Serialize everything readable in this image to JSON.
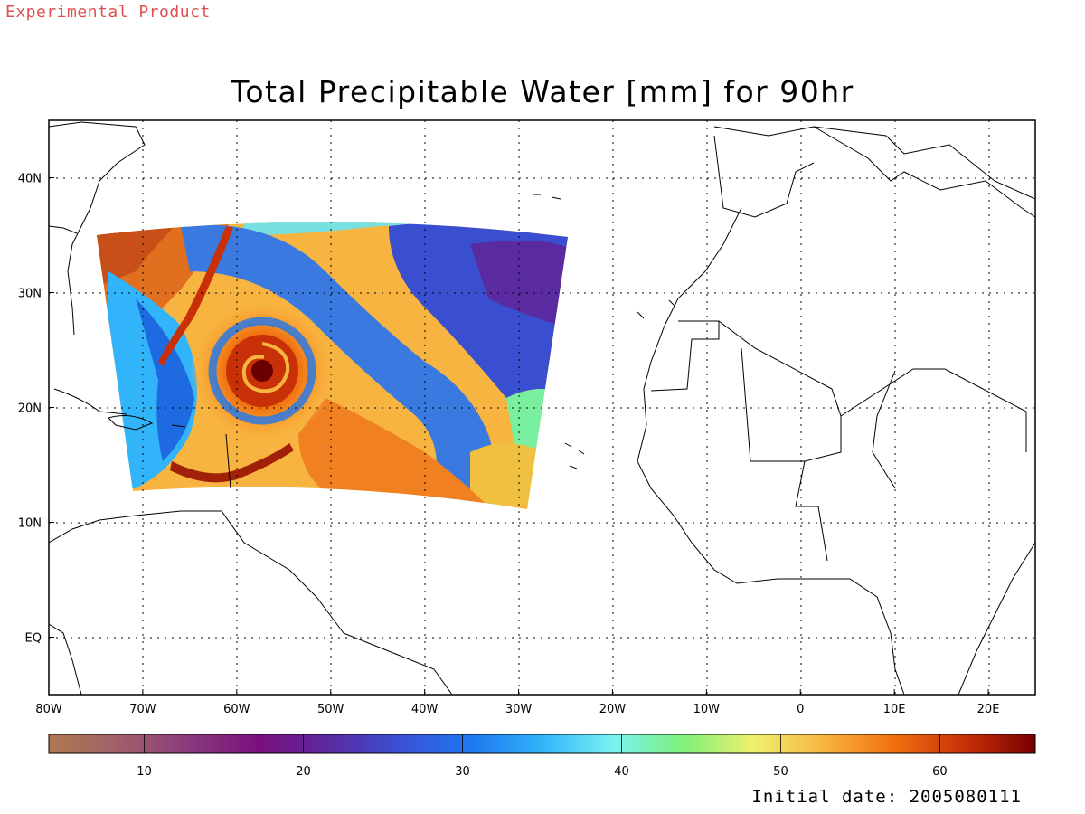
{
  "watermark": {
    "text": "Experimental Product",
    "color": "#e05050"
  },
  "title": "Total Precipitable Water [mm] for 90hr",
  "initial_date": "Initial date: 2005080111",
  "axes": {
    "lon_labels": [
      "80W",
      "70W",
      "60W",
      "50W",
      "40W",
      "30W",
      "20W",
      "10W",
      "0",
      "10E",
      "20E"
    ],
    "lat_labels": [
      "40N",
      "30N",
      "20N",
      "10N",
      "EQ"
    ],
    "lon_range": [
      -80,
      25
    ],
    "lat_range": [
      -5,
      45
    ],
    "grid": "dotted"
  },
  "colorbar": {
    "range": [
      4,
      66
    ],
    "tick_values": [
      10,
      20,
      30,
      40,
      50,
      60
    ],
    "tick_labels": [
      "10",
      "20",
      "30",
      "40",
      "50",
      "60"
    ],
    "colors": [
      "#b07850",
      "#a0606a",
      "#8a3a7c",
      "#78107e",
      "#5a2aa0",
      "#3a52d6",
      "#1e78f0",
      "#32b4fa",
      "#78f2f2",
      "#7ef07a",
      "#f0f06e",
      "#f8b440",
      "#f07010",
      "#c83008",
      "#780000"
    ]
  },
  "chart_data": {
    "type": "heatmap",
    "variable": "Total Precipitable Water",
    "units": "mm",
    "forecast_hour": 90,
    "domain_lon": [
      -75,
      -25
    ],
    "domain_lat": [
      11,
      37
    ],
    "features": [
      {
        "type": "vortex",
        "lon": -59,
        "lat": 23.5,
        "value": 65
      },
      {
        "type": "dry_band",
        "lon": -40,
        "lat": 25,
        "value": 25
      },
      {
        "type": "dry_region",
        "lon": -32,
        "lat": 32,
        "value": 20
      },
      {
        "type": "moist_region",
        "lon": -70,
        "lat": 33,
        "value": 58
      }
    ]
  }
}
